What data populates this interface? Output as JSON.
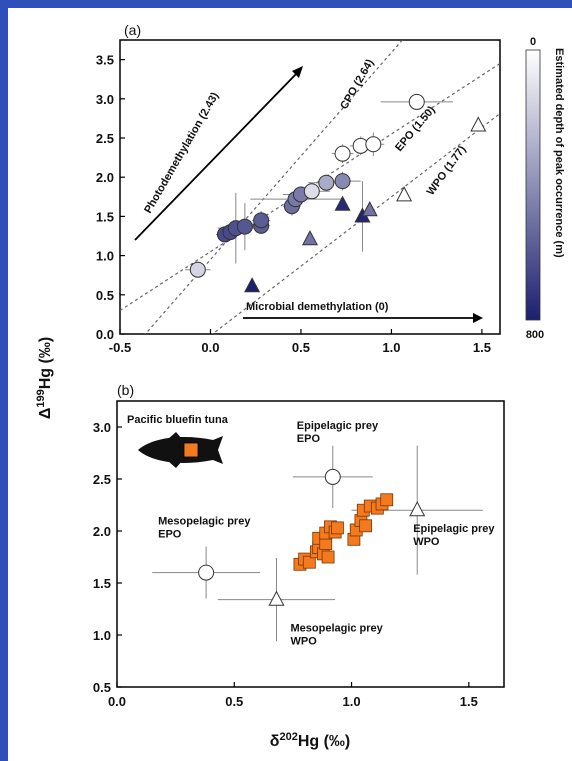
{
  "chart_data": [
    {
      "type": "scatter",
      "panel_label": "(a)",
      "xlim": [
        -0.5,
        1.6
      ],
      "ylim": [
        0.0,
        3.75
      ],
      "x_ticks": [
        "-0.5",
        "0.0",
        "0.5",
        "1.0",
        "1.5"
      ],
      "y_ticks": [
        "0.0",
        "0.5",
        "1.0",
        "1.5",
        "2.0",
        "2.5",
        "3.0",
        "3.5"
      ],
      "ylabel": "Δ199Hg (‰)",
      "colorbar": {
        "label": "Estimated depth of peak occurrence (m)",
        "min_label": "0",
        "max_label": "800",
        "range": [
          0,
          800
        ],
        "colors": [
          "#ffffff",
          "#1c1f6e"
        ]
      },
      "regression_lines": [
        {
          "name": "CPO (2.64)",
          "slope": 2.64,
          "intercept": 0.95
        },
        {
          "name": "EPO (1.50)",
          "slope": 1.5,
          "intercept": 1.05
        },
        {
          "name": "WPO (1.77)",
          "slope": 1.77,
          "intercept": -0.02
        }
      ],
      "arrows": [
        {
          "label": "Photodemethylation (2.43)"
        },
        {
          "label": "Microbial demethylation (0)"
        }
      ],
      "series": [
        {
          "marker": "circle",
          "points": [
            {
              "x": -0.07,
              "y": 0.82,
              "depth": 150,
              "xerr": 0.07,
              "yerr": 0.06
            },
            {
              "x": 0.08,
              "y": 1.27,
              "depth": 650,
              "xerr": 0.05,
              "yerr": 0.1
            },
            {
              "x": 0.11,
              "y": 1.3,
              "depth": 650,
              "xerr": 0.06,
              "yerr": 0.1
            },
            {
              "x": 0.14,
              "y": 1.35,
              "depth": 620,
              "xerr": 0.1,
              "yerr": 0.45
            },
            {
              "x": 0.19,
              "y": 1.37,
              "depth": 600,
              "xerr": 0.1,
              "yerr": 0.3
            },
            {
              "x": 0.28,
              "y": 1.38,
              "depth": 580,
              "xerr": 0.05,
              "yerr": 0.1
            },
            {
              "x": 0.28,
              "y": 1.45,
              "depth": 580,
              "xerr": 0.05,
              "yerr": 0.12
            },
            {
              "x": 0.45,
              "y": 1.63,
              "depth": 520,
              "xerr": 0.05,
              "yerr": 0.12
            },
            {
              "x": 0.47,
              "y": 1.72,
              "depth": 480,
              "xerr": 0.25,
              "yerr": 0.1
            },
            {
              "x": 0.5,
              "y": 1.78,
              "depth": 470,
              "xerr": 0.1,
              "yerr": 0.1
            },
            {
              "x": 0.56,
              "y": 1.82,
              "depth": 120,
              "xerr": 0.1,
              "yerr": 0.1
            },
            {
              "x": 0.64,
              "y": 1.93,
              "depth": 300,
              "xerr": 0.1,
              "yerr": 0.1
            },
            {
              "x": 0.73,
              "y": 1.95,
              "depth": 420,
              "xerr": 0.1,
              "yerr": 0.12
            },
            {
              "x": 0.73,
              "y": 2.3,
              "depth": 0,
              "xerr": 0.06,
              "yerr": 0.12
            },
            {
              "x": 0.83,
              "y": 2.4,
              "depth": 0,
              "xerr": 0.06,
              "yerr": 0.12
            },
            {
              "x": 0.9,
              "y": 2.42,
              "depth": 0,
              "xerr": 0.06,
              "yerr": 0.15
            },
            {
              "x": 1.14,
              "y": 2.96,
              "depth": 0,
              "xerr": 0.2,
              "yerr": 0.1
            }
          ]
        },
        {
          "marker": "triangle",
          "points": [
            {
              "x": 0.23,
              "y": 0.61,
              "depth": 800
            },
            {
              "x": 0.55,
              "y": 1.21,
              "depth": 500
            },
            {
              "x": 0.73,
              "y": 1.65,
              "depth": 760
            },
            {
              "x": 0.84,
              "y": 1.5,
              "depth": 780,
              "yerr": 0.45
            },
            {
              "x": 0.88,
              "y": 1.58,
              "depth": 500
            },
            {
              "x": 1.07,
              "y": 1.77,
              "depth": 0
            },
            {
              "x": 1.48,
              "y": 2.66,
              "depth": 0
            }
          ]
        }
      ]
    },
    {
      "type": "scatter",
      "panel_label": "(b)",
      "xlim": [
        0.0,
        1.65
      ],
      "ylim": [
        0.5,
        3.25
      ],
      "x_ticks": [
        "0.0",
        "0.5",
        "1.0",
        "1.5"
      ],
      "y_ticks": [
        "0.5",
        "1.0",
        "1.5",
        "2.0",
        "2.5",
        "3.0"
      ],
      "xlabel": "δ202Hg (‰)",
      "ylabel": "Δ199Hg (‰)",
      "legend_title": "Pacific bluefin tuna",
      "series": [
        {
          "name": "Pacific bluefin tuna",
          "marker": "square",
          "color": "#f47a1f",
          "points": [
            {
              "x": 0.78,
              "y": 1.68
            },
            {
              "x": 0.8,
              "y": 1.73
            },
            {
              "x": 0.82,
              "y": 1.7
            },
            {
              "x": 0.85,
              "y": 1.8
            },
            {
              "x": 0.86,
              "y": 1.84
            },
            {
              "x": 0.86,
              "y": 1.93
            },
            {
              "x": 0.88,
              "y": 1.78
            },
            {
              "x": 0.89,
              "y": 1.88
            },
            {
              "x": 0.9,
              "y": 1.75
            },
            {
              "x": 0.89,
              "y": 1.98
            },
            {
              "x": 0.91,
              "y": 2.04
            },
            {
              "x": 0.93,
              "y": 1.99
            },
            {
              "x": 0.94,
              "y": 2.03
            },
            {
              "x": 1.01,
              "y": 1.92
            },
            {
              "x": 1.02,
              "y": 2.01
            },
            {
              "x": 1.04,
              "y": 2.1
            },
            {
              "x": 1.05,
              "y": 2.2
            },
            {
              "x": 1.06,
              "y": 2.05
            },
            {
              "x": 1.08,
              "y": 2.24
            },
            {
              "x": 1.11,
              "y": 2.22
            },
            {
              "x": 1.13,
              "y": 2.26
            },
            {
              "x": 1.15,
              "y": 2.3
            }
          ]
        },
        {
          "name": "prey",
          "points": [
            {
              "x": 0.38,
              "y": 1.6,
              "xerr": 0.23,
              "yerr": 0.25,
              "marker": "circle",
              "label": [
                "Mesopelagic prey",
                "EPO"
              ]
            },
            {
              "x": 0.92,
              "y": 2.52,
              "xerr": 0.17,
              "yerr": 0.3,
              "marker": "circle",
              "label": [
                "Epipelagic prey",
                "EPO"
              ]
            },
            {
              "x": 0.68,
              "y": 1.34,
              "xerr": 0.25,
              "yerr": 0.4,
              "marker": "triangle",
              "label": [
                "Mesopelagic prey",
                "WPO"
              ]
            },
            {
              "x": 1.28,
              "y": 2.2,
              "xerr": 0.28,
              "yerr": 0.62,
              "marker": "triangle",
              "label": [
                "Epipelagic prey",
                "WPO"
              ]
            }
          ]
        }
      ]
    }
  ]
}
